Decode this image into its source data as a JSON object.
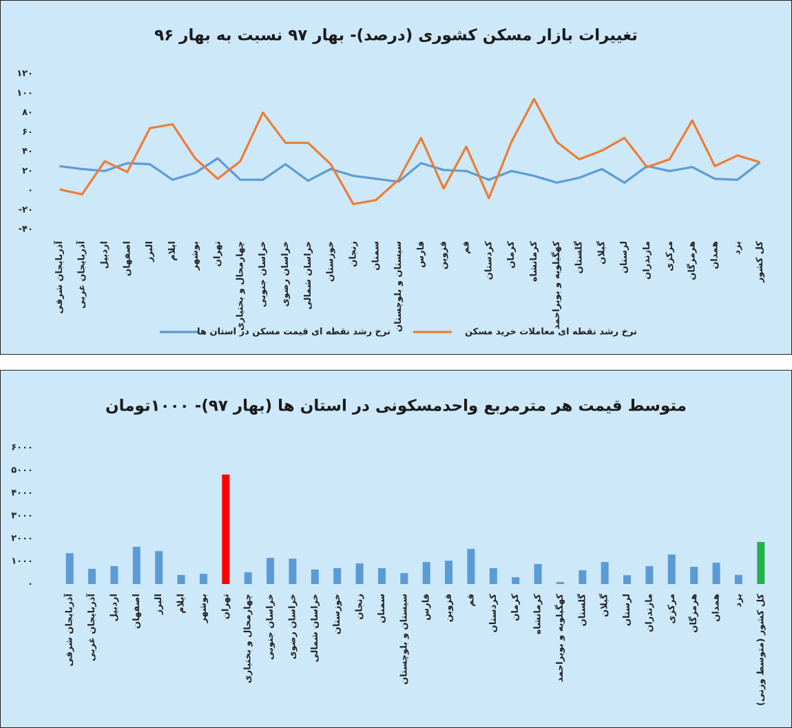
{
  "chart_data": [
    {
      "type": "line",
      "title": "تغییرات بازار مسکن کشوری (درصد)- بهار ۹۷ نسبت به بهار ۹۶",
      "categories": [
        "آذربایجان شرقی",
        "آذربایجان غربی",
        "اردبیل",
        "اصفهان",
        "البرز",
        "ایلام",
        "بوشهر",
        "تهران",
        "چهارمحال و بختیاری",
        "خراسان جنوبی",
        "خراسان رضوی",
        "خراسان شمالی",
        "خوزستان",
        "زنجان",
        "سمنان",
        "سیستان و بلوچستان",
        "فارس",
        "قزوین",
        "قم",
        "کردستان",
        "کرمان",
        "کرمانشاه",
        "کهگیلویه و بویراحمد",
        "گلستان",
        "گیلان",
        "لرستان",
        "مازندران",
        "مرکزی",
        "هرمزگان",
        "همدان",
        "یزد",
        "کل کشور"
      ],
      "series": [
        {
          "name": "نرخ رشد نقطه ای قیمت مسکن در استان ها",
          "color": "#5b9bd5",
          "values": [
            25,
            22,
            20,
            28,
            27,
            11,
            18,
            33,
            11,
            11,
            27,
            10,
            22,
            15,
            12,
            9,
            28,
            21,
            20,
            11,
            20,
            15,
            8,
            13,
            22,
            8,
            25,
            20,
            24,
            12,
            11,
            29
          ]
        },
        {
          "name": "نرخ رشد نقطه ای معاملات خرید مسکن",
          "color": "#ed7d31",
          "values": [
            1,
            -4,
            30,
            19,
            64,
            68,
            33,
            12,
            30,
            80,
            49,
            49,
            27,
            -14,
            -10,
            11,
            54,
            2,
            45,
            -8,
            50,
            94,
            50,
            32,
            41,
            54,
            24,
            32,
            72,
            25,
            36,
            29
          ]
        }
      ],
      "ylim": [
        -40,
        120
      ],
      "yticks": [
        {
          "value": 120,
          "label": "۱۲۰"
        },
        {
          "value": 100,
          "label": "۱۰۰"
        },
        {
          "value": 80,
          "label": "۸۰"
        },
        {
          "value": 60,
          "label": "۶۰"
        },
        {
          "value": 40,
          "label": "۴۰"
        },
        {
          "value": 20,
          "label": "۲۰"
        },
        {
          "value": 0,
          "label": "۰"
        },
        {
          "value": -20,
          "label": "-۲۰"
        },
        {
          "value": -40,
          "label": "-۴۰"
        }
      ],
      "legend": "bottom"
    },
    {
      "type": "bar",
      "title": "متوسط قیمت هر مترمربع واحدمسکونی در استان ها (بهار ۹۷)- ۱۰۰۰تومان",
      "categories": [
        "آذربایجان شرقی",
        "آذربایجان غربی",
        "اردبیل",
        "اصفهان",
        "البرز",
        "ایلام",
        "بوشهر",
        "تهران",
        "چهارمحال و بختیاری",
        "خراسان جنوبی",
        "خراسان رضوی",
        "خراسان شمالی",
        "خوزستان",
        "زنجان",
        "سمنان",
        "سیستان و بلوچستان",
        "فارس",
        "قزوین",
        "قم",
        "کردستان",
        "کرمان",
        "کرمانشاه",
        "کهگیلویه و بویراحمد",
        "گلستان",
        "گیلان",
        "لرستان",
        "مازندران",
        "مرکزی",
        "هرمزگان",
        "همدان",
        "یزد",
        "کل کشور (متوسط وزنی)"
      ],
      "values": [
        1360,
        670,
        790,
        1640,
        1450,
        400,
        450,
        4820,
        520,
        1150,
        1120,
        640,
        700,
        910,
        700,
        480,
        970,
        1030,
        1550,
        700,
        300,
        880,
        90,
        610,
        970,
        390,
        790,
        1300,
        760,
        940,
        400,
        1850
      ],
      "colors": [
        "#5b9bd5",
        "#5b9bd5",
        "#5b9bd5",
        "#5b9bd5",
        "#5b9bd5",
        "#5b9bd5",
        "#5b9bd5",
        "#ff0000",
        "#5b9bd5",
        "#5b9bd5",
        "#5b9bd5",
        "#5b9bd5",
        "#5b9bd5",
        "#5b9bd5",
        "#5b9bd5",
        "#5b9bd5",
        "#5b9bd5",
        "#5b9bd5",
        "#5b9bd5",
        "#5b9bd5",
        "#5b9bd5",
        "#5b9bd5",
        "#5b9bd5",
        "#5b9bd5",
        "#5b9bd5",
        "#5b9bd5",
        "#5b9bd5",
        "#5b9bd5",
        "#5b9bd5",
        "#5b9bd5",
        "#5b9bd5",
        "#22b14c"
      ],
      "ylim": [
        0,
        6000
      ],
      "yticks": [
        {
          "value": 6000,
          "label": "۶۰۰۰"
        },
        {
          "value": 5000,
          "label": "۵۰۰۰"
        },
        {
          "value": 4000,
          "label": "۴۰۰۰"
        },
        {
          "value": 3000,
          "label": "۳۰۰۰"
        },
        {
          "value": 2000,
          "label": "۲۰۰۰"
        },
        {
          "value": 1000,
          "label": "۱۰۰۰"
        },
        {
          "value": 0,
          "label": "۰"
        }
      ]
    }
  ]
}
